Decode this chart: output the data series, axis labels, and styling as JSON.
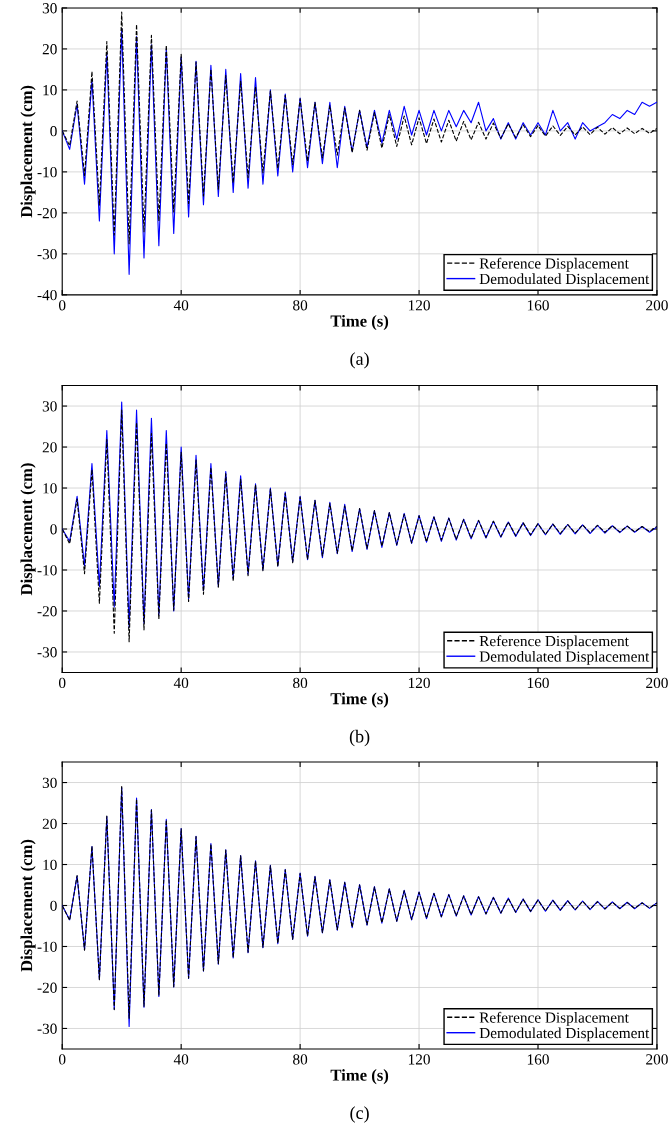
{
  "chart_data": [
    {
      "type": "line",
      "xlabel": "Time (s)",
      "ylabel": "Displacement (cm)",
      "annotations": [
        "(a)"
      ],
      "x": [
        0,
        2.5,
        5,
        7.5,
        10,
        12.5,
        15,
        17.5,
        20,
        22.5,
        25,
        27.5,
        30,
        32.5,
        35,
        37.5,
        40,
        42.5,
        45,
        47.5,
        50,
        52.5,
        55,
        57.5,
        60,
        62.5,
        65,
        67.5,
        70,
        72.5,
        75,
        77.5,
        80,
        82.5,
        85,
        87.5,
        90,
        92.5,
        95,
        97.5,
        100,
        102.5,
        105,
        107.5,
        110,
        112.5,
        115,
        117.5,
        120,
        122.5,
        125,
        127.5,
        130,
        132.5,
        135,
        137.5,
        140,
        142.5,
        145,
        147.5,
        150,
        152.5,
        155,
        157.5,
        160,
        162.5,
        165,
        167.5,
        170,
        172.5,
        175,
        177.5,
        180,
        182.5,
        185,
        187.5,
        190,
        192.5,
        195,
        197.5,
        200
      ],
      "xlim": [
        0,
        200
      ],
      "xticks": [
        0,
        40,
        80,
        120,
        160,
        200
      ],
      "ylim": [
        -40,
        30
      ],
      "yticks": [
        -40,
        -30,
        -20,
        -10,
        0,
        10,
        20,
        30
      ],
      "grid": true,
      "legend": "bottom right",
      "series": [
        {
          "name": "Reference Displacement",
          "color": "#000000",
          "line_style": "dashed",
          "values": [
            0,
            -3.6,
            7.3,
            -10.9,
            14.5,
            -18.1,
            21.8,
            -25.4,
            29,
            -27.5,
            26,
            -24.6,
            23.3,
            -22,
            20.9,
            -19.8,
            18.7,
            -17.7,
            16.8,
            -15.9,
            15,
            -14.2,
            13.5,
            -12.7,
            12.1,
            -11.4,
            10.8,
            -10.2,
            9.7,
            -9.2,
            8.7,
            -8.2,
            7.8,
            -7.4,
            7,
            -6.6,
            6.2,
            -5.9,
            5.6,
            -5.3,
            5,
            -4.7,
            4.5,
            -4.2,
            4,
            -3.8,
            3.6,
            -3.4,
            3.2,
            -3.1,
            2.9,
            -2.7,
            2.6,
            -2.5,
            2.3,
            -2.2,
            2.1,
            -2,
            1.9,
            -1.8,
            1.7,
            -1.6,
            1.5,
            -1.4,
            1.3,
            -1.3,
            1.2,
            -1.1,
            1.1,
            -1,
            1,
            -0.9,
            0.9,
            -0.8,
            0.8,
            -0.7,
            0.7,
            -0.7,
            0.6,
            -0.6,
            0.6
          ]
        },
        {
          "name": "Demodulated Displacement",
          "color": "#0000ff",
          "line_style": "solid",
          "values": [
            0,
            -4.5,
            6.5,
            -13,
            12.5,
            -22,
            19,
            -30,
            25,
            -35,
            23,
            -31,
            21,
            -28,
            20,
            -25,
            18,
            -21,
            17,
            -18,
            16,
            -16,
            15,
            -15,
            14,
            -14,
            13,
            -13,
            10,
            -11,
            9,
            -10,
            8,
            -9,
            7,
            -8,
            7,
            -9,
            6,
            -5,
            5,
            -4,
            5,
            -3,
            5,
            -2,
            6,
            -1,
            5,
            -1,
            5,
            0,
            5,
            1,
            5,
            2,
            7,
            0,
            3,
            -2,
            2,
            -2,
            2,
            -1,
            2,
            -1,
            5,
            0,
            2,
            -2,
            2,
            0,
            1,
            2,
            4,
            3,
            5,
            4,
            7,
            6,
            7
          ]
        }
      ]
    },
    {
      "type": "line",
      "xlabel": "Time (s)",
      "ylabel": "Displacement (cm)",
      "annotations": [
        "(b)"
      ],
      "x": [
        0,
        2.5,
        5,
        7.5,
        10,
        12.5,
        15,
        17.5,
        20,
        22.5,
        25,
        27.5,
        30,
        32.5,
        35,
        37.5,
        40,
        42.5,
        45,
        47.5,
        50,
        52.5,
        55,
        57.5,
        60,
        62.5,
        65,
        67.5,
        70,
        72.5,
        75,
        77.5,
        80,
        82.5,
        85,
        87.5,
        90,
        92.5,
        95,
        97.5,
        100,
        102.5,
        105,
        107.5,
        110,
        112.5,
        115,
        117.5,
        120,
        122.5,
        125,
        127.5,
        130,
        132.5,
        135,
        137.5,
        140,
        142.5,
        145,
        147.5,
        150,
        152.5,
        155,
        157.5,
        160,
        162.5,
        165,
        167.5,
        170,
        172.5,
        175,
        177.5,
        180,
        182.5,
        185,
        187.5,
        190,
        192.5,
        195,
        197.5,
        200
      ],
      "xlim": [
        0,
        200
      ],
      "xticks": [
        0,
        40,
        80,
        120,
        160,
        200
      ],
      "ylim": [
        -35,
        35
      ],
      "yticks": [
        -30,
        -20,
        -10,
        0,
        10,
        20,
        30
      ],
      "grid": true,
      "legend": "bottom right",
      "series": [
        {
          "name": "Reference Displacement",
          "color": "#000000",
          "line_style": "dashed",
          "values": [
            0,
            -3.6,
            7.3,
            -10.9,
            14.5,
            -18.1,
            21.8,
            -25.4,
            29,
            -27.5,
            26,
            -24.6,
            23.3,
            -22,
            20.9,
            -19.8,
            18.7,
            -17.7,
            16.8,
            -15.9,
            15,
            -14.2,
            13.5,
            -12.7,
            12.1,
            -11.4,
            10.8,
            -10.2,
            9.7,
            -9.2,
            8.7,
            -8.2,
            7.8,
            -7.4,
            7,
            -6.6,
            6.2,
            -5.9,
            5.6,
            -5.3,
            5,
            -4.7,
            4.5,
            -4.2,
            4,
            -3.8,
            3.6,
            -3.4,
            3.2,
            -3.1,
            2.9,
            -2.7,
            2.6,
            -2.5,
            2.3,
            -2.2,
            2.1,
            -2,
            1.9,
            -1.8,
            1.7,
            -1.6,
            1.5,
            -1.4,
            1.3,
            -1.3,
            1.2,
            -1.1,
            1.1,
            -1,
            1,
            -0.9,
            0.9,
            -0.8,
            0.8,
            -0.7,
            0.7,
            -0.7,
            0.6,
            -0.6,
            0.6
          ]
        },
        {
          "name": "Demodulated Displacement",
          "color": "#0000ff",
          "line_style": "solid",
          "values": [
            0,
            -3,
            8,
            -9,
            16,
            -14,
            24,
            -19,
            31,
            -24,
            29,
            -23,
            27,
            -21,
            24,
            -20,
            20,
            -17,
            18,
            -15,
            16,
            -14,
            14,
            -12,
            13,
            -11,
            11,
            -10,
            10,
            -9,
            9,
            -8,
            8,
            -7.5,
            7,
            -7,
            6.5,
            -6,
            6,
            -5.5,
            5,
            -5,
            4.5,
            -4.5,
            4,
            -4,
            3.8,
            -3.5,
            3.3,
            -3.2,
            3,
            -3,
            2.7,
            -2.7,
            2.4,
            -2.4,
            2.1,
            -2.2,
            1.9,
            -2,
            1.7,
            -1.8,
            1.5,
            -1.6,
            1.3,
            -1.4,
            1.2,
            -1.3,
            1.1,
            -1.2,
            1,
            -1.1,
            0.9,
            -1,
            0.8,
            -0.9,
            0.7,
            -0.8,
            0.6,
            -0.8,
            0.5
          ]
        }
      ]
    },
    {
      "type": "line",
      "xlabel": "Time (s)",
      "ylabel": "Displacement (cm)",
      "annotations": [
        "(c)"
      ],
      "x": [
        0,
        2.5,
        5,
        7.5,
        10,
        12.5,
        15,
        17.5,
        20,
        22.5,
        25,
        27.5,
        30,
        32.5,
        35,
        37.5,
        40,
        42.5,
        45,
        47.5,
        50,
        52.5,
        55,
        57.5,
        60,
        62.5,
        65,
        67.5,
        70,
        72.5,
        75,
        77.5,
        80,
        82.5,
        85,
        87.5,
        90,
        92.5,
        95,
        97.5,
        100,
        102.5,
        105,
        107.5,
        110,
        112.5,
        115,
        117.5,
        120,
        122.5,
        125,
        127.5,
        130,
        132.5,
        135,
        137.5,
        140,
        142.5,
        145,
        147.5,
        150,
        152.5,
        155,
        157.5,
        160,
        162.5,
        165,
        167.5,
        170,
        172.5,
        175,
        177.5,
        180,
        182.5,
        185,
        187.5,
        190,
        192.5,
        195,
        197.5,
        200
      ],
      "xlim": [
        0,
        200
      ],
      "xticks": [
        0,
        40,
        80,
        120,
        160,
        200
      ],
      "ylim": [
        -35,
        35
      ],
      "yticks": [
        -30,
        -20,
        -10,
        0,
        10,
        20,
        30
      ],
      "grid": true,
      "legend": "bottom right",
      "series": [
        {
          "name": "Reference Displacement",
          "color": "#000000",
          "line_style": "dashed",
          "values": [
            0,
            -3.6,
            7.3,
            -10.9,
            14.5,
            -18.1,
            21.8,
            -25.4,
            29,
            -27.5,
            26,
            -24.6,
            23.3,
            -22,
            20.9,
            -19.8,
            18.7,
            -17.7,
            16.8,
            -15.9,
            15,
            -14.2,
            13.5,
            -12.7,
            12.1,
            -11.4,
            10.8,
            -10.2,
            9.7,
            -9.2,
            8.7,
            -8.2,
            7.8,
            -7.4,
            7,
            -6.6,
            6.2,
            -5.9,
            5.6,
            -5.3,
            5,
            -4.7,
            4.5,
            -4.2,
            4,
            -3.8,
            3.6,
            -3.4,
            3.2,
            -3.1,
            2.9,
            -2.7,
            2.6,
            -2.5,
            2.3,
            -2.2,
            2.1,
            -2,
            1.9,
            -1.8,
            1.7,
            -1.6,
            1.5,
            -1.4,
            1.3,
            -1.3,
            1.2,
            -1.1,
            1.1,
            -1,
            1,
            -0.9,
            0.9,
            -0.8,
            0.8,
            -0.7,
            0.7,
            -0.7,
            0.6,
            -0.6,
            0.6
          ]
        },
        {
          "name": "Demodulated Displacement",
          "color": "#0000ff",
          "line_style": "solid",
          "values": [
            0,
            -3.5,
            7.2,
            -10.8,
            14.4,
            -18,
            21.7,
            -25.3,
            28.8,
            -29.5,
            26.2,
            -24.8,
            23.4,
            -22.2,
            21,
            -19.9,
            18.8,
            -17.8,
            16.9,
            -16,
            15.1,
            -14.3,
            13.6,
            -12.8,
            12.2,
            -11.5,
            10.9,
            -10.3,
            9.8,
            -9.3,
            8.8,
            -8.3,
            7.9,
            -7.5,
            7.1,
            -6.7,
            6.3,
            -6,
            5.7,
            -5.4,
            5.1,
            -4.8,
            4.6,
            -4.3,
            4.1,
            -3.9,
            3.7,
            -3.5,
            3.3,
            -3.2,
            3,
            -2.8,
            2.7,
            -2.6,
            2.4,
            -2.3,
            2.2,
            -2.1,
            2,
            -1.9,
            1.8,
            -1.7,
            1.6,
            -1.5,
            1.4,
            -1.4,
            1.3,
            -1.2,
            1.2,
            -1.1,
            1.1,
            -1,
            1,
            -0.9,
            0.9,
            -0.8,
            0.8,
            -0.8,
            0.7,
            -0.7,
            0.7
          ]
        }
      ]
    }
  ]
}
